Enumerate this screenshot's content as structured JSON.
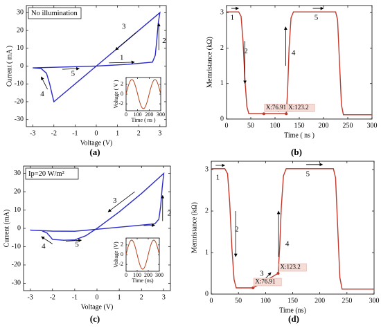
{
  "chart_data": [
    {
      "type": "line",
      "panel_label": "(a)",
      "label_box": "No illumination",
      "x": [
        -3,
        -2.6,
        -2.35,
        -2.2,
        -2.08,
        -2,
        3,
        2.92,
        2.85,
        2.78,
        2.65,
        1.5,
        0,
        -1.5,
        -3
      ],
      "values": [
        -1,
        -1.4,
        -4,
        -10,
        -16,
        -20,
        30,
        24,
        14,
        6,
        2.2,
        1,
        0,
        -0.5,
        -1
      ],
      "color": "#2a2ac8",
      "xlim": [
        -3.3,
        3.3
      ],
      "ylim": [
        -34,
        34
      ],
      "xticks": [
        -3,
        -2,
        -1,
        0,
        1,
        2,
        3
      ],
      "yticks": [
        -30,
        -20,
        -10,
        0,
        10,
        20,
        30
      ],
      "xlabel": "Voltage (V)",
      "ylabel": "Current ( mA )",
      "annotations": [
        "1",
        "2",
        "3",
        "4",
        "5"
      ]
    },
    {
      "type": "line",
      "x": [
        0,
        10,
        20,
        30,
        40,
        50,
        60,
        70,
        80,
        90,
        100,
        110,
        120,
        130,
        140,
        150,
        160,
        170,
        180,
        190,
        200,
        210,
        220,
        230,
        240,
        250,
        260,
        270,
        280,
        290,
        300
      ],
      "values": [
        0,
        0.93,
        1.76,
        2.43,
        2.85,
        3,
        2.85,
        2.43,
        1.76,
        0.93,
        0,
        -0.93,
        -1.76,
        -2.43,
        -2.85,
        -3,
        -2.85,
        -2.43,
        -1.76,
        -0.93,
        0,
        0.93,
        1.76,
        2.43,
        2.85,
        3,
        2.85,
        2.43,
        1.76,
        0.93,
        0
      ],
      "color": "#b5451b",
      "xlim": [
        0,
        300
      ],
      "ylim": [
        -3.4,
        3.4
      ],
      "xticks": [
        0,
        100,
        200,
        300
      ],
      "yticks": [
        -2,
        0,
        2
      ],
      "xlabel": "Time ( ns )",
      "ylabel": "Voltage ( V )"
    },
    {
      "type": "line",
      "panel_label": "(b)",
      "x": [
        0,
        25,
        30,
        34,
        38,
        42,
        46,
        76.91,
        100,
        123.2,
        126,
        129,
        133,
        138,
        225,
        229,
        233,
        237,
        241,
        300
      ],
      "values": [
        3.02,
        3.02,
        2.9,
        2.2,
        1.1,
        0.35,
        0.15,
        0.15,
        0.15,
        0.15,
        0.8,
        2.0,
        2.85,
        3.02,
        3.02,
        2.8,
        1.6,
        0.4,
        0.12,
        0.12
      ],
      "color": "#c0392b",
      "xlim": [
        0,
        300
      ],
      "ylim": [
        0,
        3.2
      ],
      "xticks": [
        0,
        50,
        100,
        150,
        200,
        250,
        300
      ],
      "yticks": [
        0,
        1,
        2,
        3
      ],
      "xlabel": "Time ( ns )",
      "ylabel": "Memristance (kΩ)",
      "annotations": [
        "1",
        "2",
        "3",
        "4",
        "5"
      ],
      "datatips": [
        {
          "label": "X:76.91",
          "x": 76.91,
          "y": 0.15
        },
        {
          "label": "X:123.2",
          "x": 123.2,
          "y": 0.15
        }
      ]
    },
    {
      "type": "line",
      "panel_label": "(c)",
      "label_box": "Ip=20 W/m²",
      "x": [
        -3,
        -2.5,
        -2.25,
        -2.1,
        -2,
        -1.5,
        -1,
        -0.5,
        0,
        1,
        2,
        3,
        2.93,
        2.86,
        2.78,
        2.6,
        1.5,
        0,
        -1,
        -2,
        -3
      ],
      "values": [
        -1,
        -1.2,
        -2.5,
        -4.5,
        -6,
        -6.5,
        -6.3,
        -4,
        0,
        9,
        19,
        30,
        22,
        12,
        5,
        2.5,
        1.2,
        -0.5,
        -1.6,
        -1.5,
        -1
      ],
      "color": "#2a2ac8",
      "xlim": [
        -3.3,
        3.3
      ],
      "ylim": [
        -34,
        34
      ],
      "xticks": [
        -3,
        -2,
        -1,
        0,
        1,
        2,
        3
      ],
      "yticks": [
        -30,
        -20,
        -10,
        0,
        10,
        20,
        30
      ],
      "xlabel": "Voltage (V)",
      "ylabel": "Current (mA)",
      "annotations": [
        "1",
        "2",
        "3",
        "4",
        "5"
      ]
    },
    {
      "type": "line",
      "x": [
        0,
        10,
        20,
        30,
        40,
        50,
        60,
        70,
        80,
        90,
        100,
        110,
        120,
        130,
        140,
        150,
        160,
        170,
        180,
        190,
        200,
        210,
        220,
        230,
        240,
        250,
        260,
        270,
        280,
        290,
        300
      ],
      "values": [
        0,
        0.93,
        1.76,
        2.43,
        2.85,
        3,
        2.85,
        2.43,
        1.76,
        0.93,
        0,
        -0.93,
        -1.76,
        -2.43,
        -2.85,
        -3,
        -2.85,
        -2.43,
        -1.76,
        -0.93,
        0,
        0.93,
        1.76,
        2.43,
        2.85,
        3,
        2.85,
        2.43,
        1.76,
        0.93,
        0
      ],
      "color": "#b5451b",
      "xlim": [
        0,
        300
      ],
      "ylim": [
        -3.4,
        3.4
      ],
      "xticks": [
        0,
        100,
        200,
        300
      ],
      "yticks": [
        -2,
        0,
        2
      ],
      "xlabel": "Time (ns)",
      "ylabel": "Voltage (V)"
    },
    {
      "type": "line",
      "panel_label": "(d)",
      "x": [
        0,
        25,
        30,
        34,
        38,
        42,
        46,
        76.91,
        100,
        123.2,
        126,
        129,
        133,
        138,
        225,
        229,
        233,
        237,
        241,
        300
      ],
      "values": [
        3.02,
        3.02,
        2.9,
        2.2,
        1.1,
        0.35,
        0.15,
        0.15,
        0.32,
        0.5,
        1.1,
        2.1,
        2.85,
        3.02,
        3.02,
        2.8,
        1.6,
        0.4,
        0.12,
        0.12
      ],
      "color": "#c0392b",
      "xlim": [
        0,
        300
      ],
      "ylim": [
        0,
        3.2
      ],
      "xticks": [
        0,
        50,
        100,
        150,
        200,
        250,
        300
      ],
      "yticks": [
        0,
        1,
        2,
        3
      ],
      "xlabel": "Time (ns)",
      "ylabel": "Memristance (kΩ)",
      "annotations": [
        "1",
        "2",
        "3",
        "4",
        "5"
      ],
      "datatips": [
        {
          "label": "X:76.91",
          "x": 76.91,
          "y": 0.15
        },
        {
          "label": "X:123.2",
          "x": 123.2,
          "y": 0.5
        }
      ]
    }
  ]
}
